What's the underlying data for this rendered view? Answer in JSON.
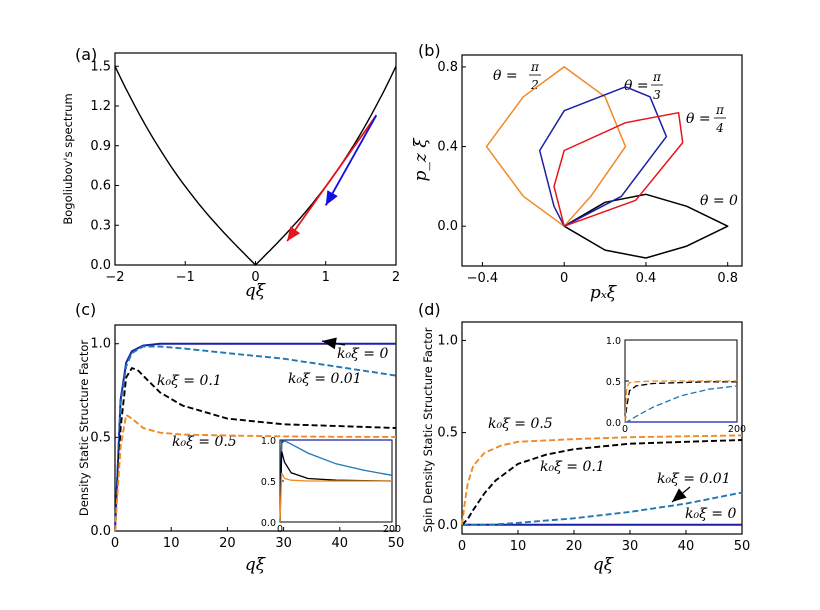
{
  "colors": {
    "black": "#000000",
    "orange": "#f08a24",
    "blue": "#1f77b4",
    "navy": "#1b1fa8",
    "red": "#e8141c",
    "arrow_blue": "#1010e0"
  },
  "chart_data": [
    {
      "id": "a",
      "panel_label": "(a)",
      "type": "line",
      "xlabel": "qξ",
      "ylabel": "Bogoliubov's spectrum",
      "xlim": [
        -2,
        2
      ],
      "ylim": [
        0,
        1.6
      ],
      "xticks": [
        "−2",
        "−1",
        "0",
        "1",
        "2"
      ],
      "yticks": [
        "0.0",
        "0.3",
        "0.6",
        "0.9",
        "1.2",
        "1.5"
      ],
      "series": [
        {
          "color": "#000000",
          "x": [
            -2,
            -1.5,
            -1,
            -0.5,
            0,
            0.5,
            1,
            1.5,
            2
          ],
          "y": [
            1.5,
            1.03,
            0.61,
            0.28,
            0.0,
            0.28,
            0.61,
            1.03,
            1.5
          ]
        }
      ],
      "arrows": [
        {
          "color": "#e8141c",
          "from": [
            1.72,
            1.13
          ],
          "to": [
            0.45,
            0.18
          ]
        },
        {
          "color": "#1010e0",
          "from": [
            1.72,
            1.13
          ],
          "to": [
            1.0,
            0.45
          ]
        }
      ]
    },
    {
      "id": "b",
      "panel_label": "(b)",
      "type": "line",
      "xlabel": "pₓξ",
      "ylabel": "p_z ξ",
      "xlim": [
        -0.5,
        0.87
      ],
      "ylim": [
        -0.2,
        0.86
      ],
      "xticks": [
        "−0.4",
        "0",
        "0.4",
        "0.8"
      ],
      "yticks": [
        "0.0",
        "0.4",
        "0.8"
      ],
      "annotations": [
        "θ = π/2",
        "θ = π/3",
        "θ = π/4",
        "θ = 0"
      ],
      "series": [
        {
          "color": "#000000",
          "points": [
            [
              0,
              0
            ],
            [
              0.2,
              0.12
            ],
            [
              0.4,
              0.16
            ],
            [
              0.6,
              0.1
            ],
            [
              0.8,
              0
            ],
            [
              0.6,
              -0.1
            ],
            [
              0.4,
              -0.16
            ],
            [
              0.2,
              -0.12
            ],
            [
              0,
              0
            ]
          ]
        },
        {
          "color": "#f08a24",
          "points": [
            [
              0,
              0
            ],
            [
              0.13,
              0.15
            ],
            [
              0.3,
              0.4
            ],
            [
              0.2,
              0.65
            ],
            [
              0,
              0.8
            ],
            [
              -0.2,
              0.65
            ],
            [
              -0.38,
              0.4
            ],
            [
              -0.2,
              0.15
            ],
            [
              0,
              0
            ]
          ]
        },
        {
          "color": "#1b1fa8",
          "points": [
            [
              0,
              0
            ],
            [
              0.28,
              0.15
            ],
            [
              0.5,
              0.45
            ],
            [
              0.42,
              0.65
            ],
            [
              0.3,
              0.7
            ],
            [
              0,
              0.58
            ],
            [
              -0.12,
              0.38
            ],
            [
              -0.05,
              0.1
            ],
            [
              0,
              0
            ]
          ]
        },
        {
          "color": "#e8141c",
          "points": [
            [
              0,
              0
            ],
            [
              0.35,
              0.13
            ],
            [
              0.58,
              0.42
            ],
            [
              0.56,
              0.57
            ],
            [
              0.3,
              0.52
            ],
            [
              0,
              0.38
            ],
            [
              -0.05,
              0.2
            ],
            [
              0,
              0
            ]
          ]
        }
      ]
    },
    {
      "id": "c",
      "panel_label": "(c)",
      "type": "line",
      "xlabel": "qξ",
      "ylabel": "Density Static Structure Factor",
      "xlim": [
        0,
        50
      ],
      "ylim": [
        0,
        1.1
      ],
      "xticks": [
        "0",
        "10",
        "20",
        "30",
        "40",
        "50"
      ],
      "yticks": [
        "0.0",
        "0.5",
        "1.0"
      ],
      "annotations": [
        "k₀ξ = 0",
        "k₀ξ = 0.01",
        "k₀ξ = 0.1",
        "k₀ξ = 0.5"
      ],
      "series": [
        {
          "name": "k₀ξ = 0",
          "color": "#1b1fa8",
          "dash": false,
          "x": [
            0,
            1,
            2,
            3,
            5,
            8,
            12,
            20,
            30,
            40,
            50
          ],
          "y": [
            0,
            0.7,
            0.9,
            0.96,
            0.99,
            1.0,
            1.0,
            1.0,
            1.0,
            1.0,
            1.0
          ]
        },
        {
          "name": "k₀ξ = 0.01",
          "color": "#1f77b4",
          "dash": true,
          "x": [
            0,
            1,
            2,
            3,
            5,
            8,
            12,
            20,
            30,
            40,
            50
          ],
          "y": [
            0,
            0.68,
            0.88,
            0.95,
            0.985,
            0.985,
            0.975,
            0.95,
            0.92,
            0.875,
            0.83
          ]
        },
        {
          "name": "k₀ξ = 0.1",
          "color": "#000000",
          "dash": true,
          "x": [
            0,
            1,
            2,
            3,
            4,
            6,
            8,
            12,
            20,
            30,
            40,
            50
          ],
          "y": [
            0,
            0.55,
            0.82,
            0.87,
            0.86,
            0.8,
            0.74,
            0.67,
            0.6,
            0.57,
            0.56,
            0.55
          ]
        },
        {
          "name": "k₀ξ = 0.5",
          "color": "#f08a24",
          "dash": true,
          "x": [
            0,
            1,
            2,
            3,
            5,
            8,
            12,
            20,
            30,
            40,
            50
          ],
          "y": [
            0,
            0.45,
            0.62,
            0.6,
            0.55,
            0.525,
            0.515,
            0.51,
            0.505,
            0.503,
            0.502
          ]
        }
      ],
      "inset": {
        "xlim": [
          0,
          200
        ],
        "ylim": [
          0,
          1.0
        ],
        "xticks": [
          "0",
          "200"
        ],
        "yticks": [
          "0.0",
          "0.5",
          "1.0"
        ]
      }
    },
    {
      "id": "d",
      "panel_label": "(d)",
      "type": "line",
      "xlabel": "qξ",
      "ylabel": "Spin Density Static Structure Factor",
      "xlim": [
        0,
        50
      ],
      "ylim": [
        -0.05,
        1.1
      ],
      "xticks": [
        "0",
        "10",
        "20",
        "30",
        "40",
        "50"
      ],
      "yticks": [
        "0.0",
        "0.5",
        "1.0"
      ],
      "annotations": [
        "k₀ξ = 0.5",
        "k₀ξ = 0.1",
        "k₀ξ = 0.01",
        "k₀ξ = 0"
      ],
      "series": [
        {
          "name": "k₀ξ = 0",
          "color": "#1b1fa8",
          "dash": false,
          "x": [
            0,
            50
          ],
          "y": [
            0,
            0
          ]
        },
        {
          "name": "k₀ξ = 0.01",
          "color": "#1f77b4",
          "dash": true,
          "x": [
            0,
            5,
            10,
            20,
            30,
            40,
            50
          ],
          "y": [
            0,
            0.0,
            0.01,
            0.035,
            0.07,
            0.115,
            0.175
          ]
        },
        {
          "name": "k₀ξ = 0.1",
          "color": "#000000",
          "dash": true,
          "x": [
            0,
            1,
            2,
            4,
            6,
            10,
            15,
            20,
            30,
            40,
            50
          ],
          "y": [
            0,
            0.03,
            0.08,
            0.17,
            0.24,
            0.33,
            0.38,
            0.41,
            0.44,
            0.45,
            0.46
          ]
        },
        {
          "name": "k₀ξ = 0.5",
          "color": "#f08a24",
          "dash": true,
          "x": [
            0,
            0.5,
            1,
            2,
            4,
            7,
            10,
            20,
            30,
            40,
            50
          ],
          "y": [
            0,
            0.12,
            0.22,
            0.32,
            0.39,
            0.43,
            0.45,
            0.465,
            0.475,
            0.48,
            0.485
          ]
        }
      ],
      "inset": {
        "xlim": [
          0,
          200
        ],
        "ylim": [
          0,
          1.0
        ],
        "xticks": [
          "0",
          "200"
        ],
        "yticks": [
          "0.0",
          "0.5",
          "1.0"
        ]
      }
    }
  ]
}
